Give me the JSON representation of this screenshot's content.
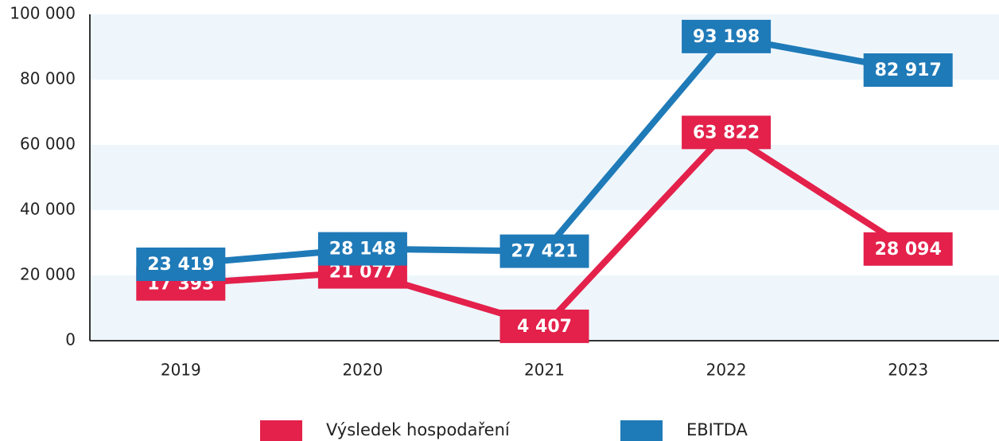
{
  "chart_data": {
    "type": "line",
    "categories": [
      "2019",
      "2020",
      "2021",
      "2022",
      "2023"
    ],
    "series": [
      {
        "name": "Výsledek hospodaření",
        "color": "#e3214b",
        "values": [
          17393,
          21077,
          4407,
          63822,
          28094
        ],
        "value_labels": [
          "17 393",
          "21 077",
          "4 407",
          "63 822",
          "28 094"
        ]
      },
      {
        "name": "EBITDA",
        "color": "#1f7ab8",
        "values": [
          23419,
          28148,
          27421,
          93198,
          82917
        ],
        "value_labels": [
          "23 419",
          "28 148",
          "27 421",
          "93 198",
          "82 917"
        ]
      }
    ],
    "ylim": [
      0,
      100000
    ],
    "yticks": [
      {
        "value": 0,
        "label": "0"
      },
      {
        "value": 20000,
        "label": "20 000"
      },
      {
        "value": 40000,
        "label": "40 000"
      },
      {
        "value": 60000,
        "label": "60 000"
      },
      {
        "value": 80000,
        "label": "80 000"
      },
      {
        "value": 100000,
        "label": "100 000"
      }
    ],
    "grid": true
  }
}
